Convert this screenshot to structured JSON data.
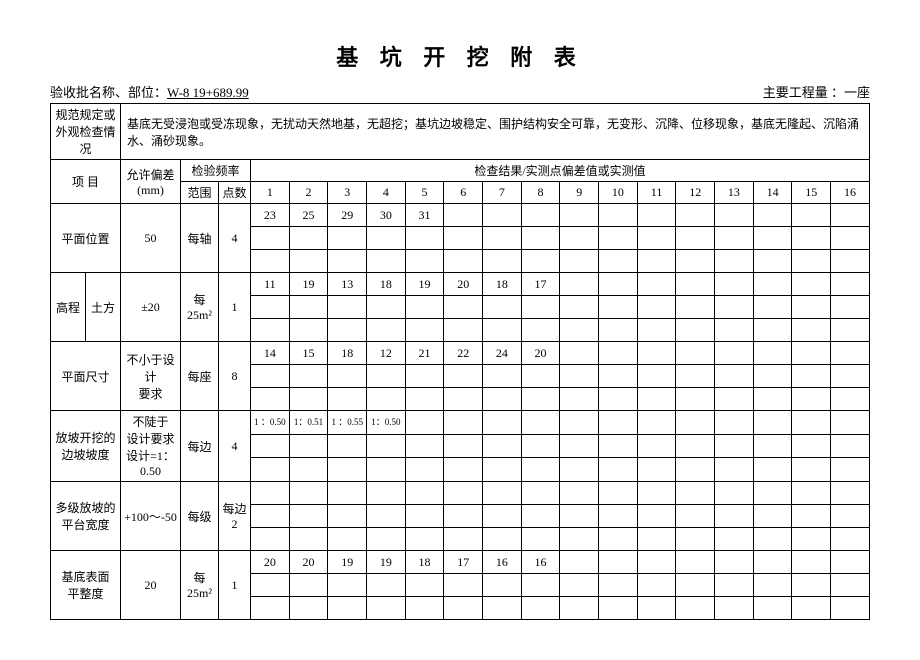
{
  "title": "基 坑 开 挖 附 表",
  "header": {
    "left_label": "验收批名称、部位：",
    "left_value": "W-8    19+689.99",
    "right_label": "主要工程量 ：",
    "right_value": "一座"
  },
  "spec_label": "规范规定或\n外观检查情况",
  "spec_text": "基底无受浸泡或受冻现象，无扰动天然地基，无超挖；基坑边坡稳定、围护结构安全可靠，无变形、沉降、位移现象，基底无隆起、沉陷涌水、涌砂现象。",
  "col_item": "项   目",
  "col_tolerance": "允许偏差\n(mm)",
  "col_freq": "检验频率",
  "col_range": "范围",
  "col_points": "点数",
  "col_result": "检查结果/实测点偏差值或实测值",
  "nums": [
    "1",
    "2",
    "3",
    "4",
    "5",
    "6",
    "7",
    "8",
    "9",
    "10",
    "11",
    "12",
    "13",
    "14",
    "15",
    "16"
  ],
  "rows": [
    {
      "name": "平面位置",
      "name2": "",
      "tol": "50",
      "range": "每轴",
      "pts": "4",
      "vals": [
        "23",
        "25",
        "29",
        "30",
        "31",
        "",
        "",
        "",
        "",
        "",
        "",
        "",
        "",
        "",
        "",
        ""
      ]
    },
    {
      "name": "高程",
      "name2": "土方",
      "tol": "±20",
      "range": "每\n25m²",
      "pts": "1",
      "vals": [
        "11",
        "19",
        "13",
        "18",
        "19",
        "20",
        "18",
        "17",
        "",
        "",
        "",
        "",
        "",
        "",
        "",
        ""
      ]
    },
    {
      "name": "平面尺寸",
      "name2": "",
      "tol": "不小于设计\n要求",
      "range": "每座",
      "pts": "8",
      "vals": [
        "14",
        "15",
        "18",
        "12",
        "21",
        "22",
        "24",
        "20",
        "",
        "",
        "",
        "",
        "",
        "",
        "",
        ""
      ]
    },
    {
      "name": "放坡开挖的\n边坡坡度",
      "name2": "",
      "tol": "不陡于\n设计要求\n设计=1：0.50",
      "range": "每边",
      "pts": "4",
      "vals": [
        "1 ：0.50",
        "1：0.51",
        "1 ：0.55",
        "1：0.50",
        "",
        "",
        "",
        "",
        "",
        "",
        "",
        "",
        "",
        "",
        "",
        ""
      ],
      "small": true
    },
    {
      "name": "多级放坡的\n平台宽度",
      "name2": "",
      "tol": "+100～-50",
      "range": "每级",
      "pts": "每边\n2",
      "vals": [
        "",
        "",
        "",
        "",
        "",
        "",
        "",
        "",
        "",
        "",
        "",
        "",
        "",
        "",
        "",
        ""
      ]
    },
    {
      "name": "基底表面\n平整度",
      "name2": "",
      "tol": "20",
      "range": "每\n25m²",
      "pts": "1",
      "vals": [
        "20",
        "20",
        "19",
        "19",
        "18",
        "17",
        "16",
        "16",
        "",
        "",
        "",
        "",
        "",
        "",
        "",
        ""
      ]
    }
  ]
}
